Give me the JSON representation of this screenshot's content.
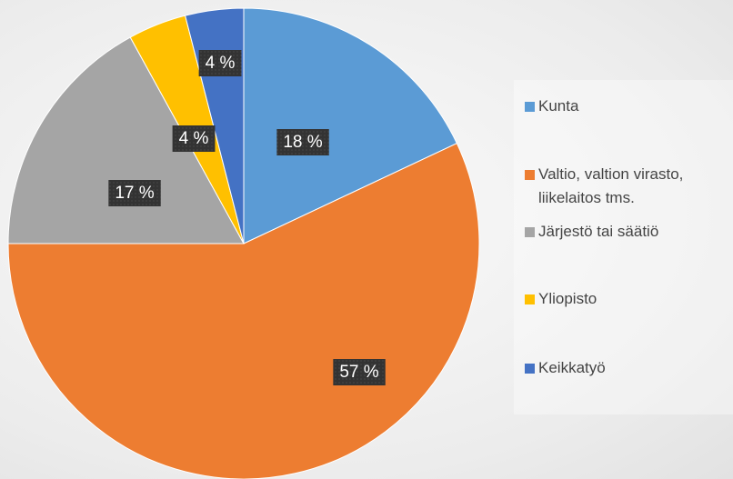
{
  "chart_data": {
    "type": "pie",
    "categories": [
      "Kunta",
      "Valtio, valtion virasto, liikelaitos tms.",
      "Järjestö tai säätiö",
      "Yliopisto",
      "Keikkatyö"
    ],
    "values": [
      18,
      57,
      17,
      4,
      4
    ],
    "value_labels": [
      "18 %",
      "57 %",
      "17 %",
      "4 %",
      "4 %"
    ],
    "colors": [
      "#5b9bd5",
      "#ed7d31",
      "#a5a5a5",
      "#ffc000",
      "#4472c4"
    ],
    "legend": "right"
  }
}
